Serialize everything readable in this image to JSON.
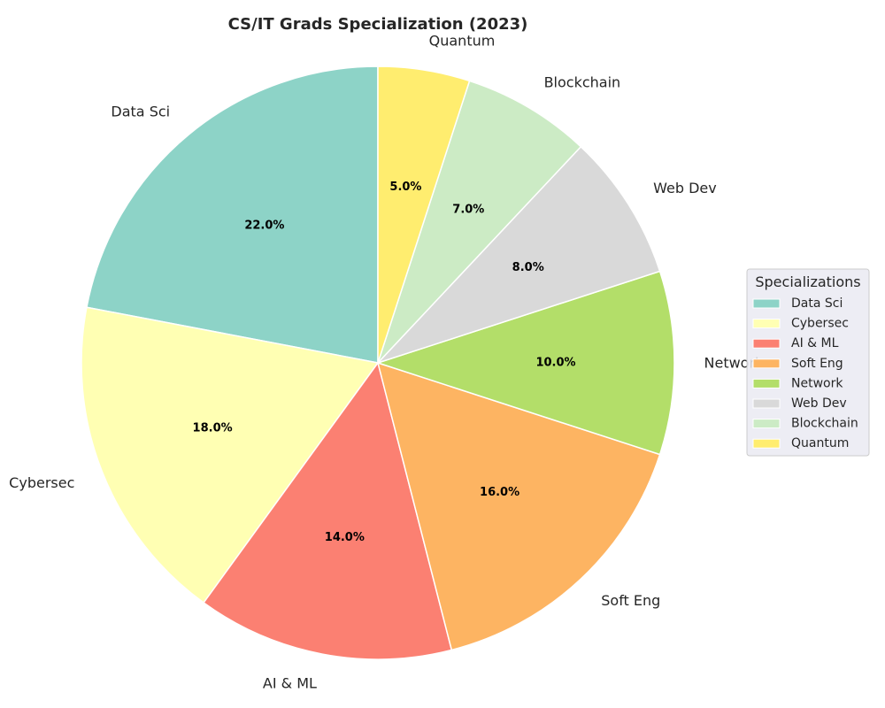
{
  "chart_data": {
    "type": "pie",
    "title": "CS/IT Grads Specialization (2023)",
    "categories": [
      "Data Sci",
      "Cybersec",
      "AI & ML",
      "Soft Eng",
      "Network",
      "Web Dev",
      "Blockchain",
      "Quantum"
    ],
    "values": [
      22,
      18,
      14,
      16,
      10,
      8,
      7,
      5
    ],
    "value_labels": [
      "22.0%",
      "18.0%",
      "14.0%",
      "16.0%",
      "10.0%",
      "8.0%",
      "7.0%",
      "5.0%"
    ],
    "colors": [
      "#8dd3c7",
      "#ffffb3",
      "#fb8072",
      "#fdb462",
      "#b3de69",
      "#d9d9d9",
      "#ccebc5",
      "#ffed6f"
    ],
    "start_angle_deg": 90,
    "direction": "counterclockwise",
    "legend": {
      "title": "Specializations",
      "position": "right",
      "entries": [
        "Data Sci",
        "Cybersec",
        "AI & ML",
        "Soft Eng",
        "Network",
        "Web Dev",
        "Blockchain",
        "Quantum"
      ]
    }
  }
}
